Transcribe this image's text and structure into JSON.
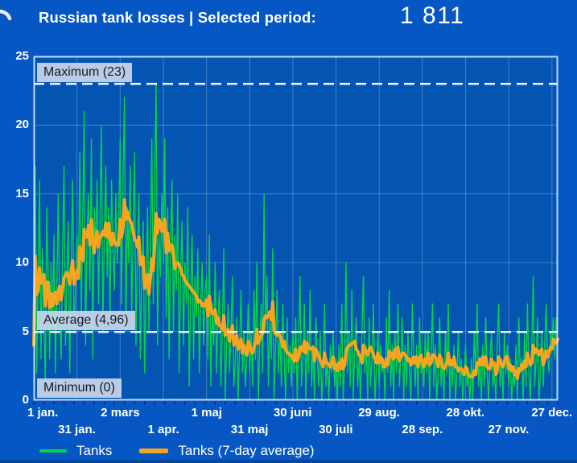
{
  "header": {
    "title": "Russian tank losses | Selected period:",
    "total": "1 811",
    "icon": "partial-undo-arrow"
  },
  "colors": {
    "background": "#0657C4",
    "plot_background": "#0455B2",
    "grid": "rgba(255,255,255,0.25)",
    "plot_border": "rgba(225,238,255,0.85)",
    "tanks_green": "#05D246",
    "average_orange": "#F7A41E",
    "reference_dash": "#F2F6FB",
    "chip_bg": "rgba(201,214,234,0.92)",
    "chip_text": "#171B22",
    "minor_tick": "rgba(6,36,90,0.75)",
    "bottom_edge": "#04479E"
  },
  "legend": {
    "items": [
      {
        "label": "Tanks",
        "color": "#05D246",
        "swatch_height": 4
      },
      {
        "label": "Tanks (7-day average)",
        "color": "#F7A41E",
        "swatch_height": 6
      }
    ]
  },
  "chart_data": {
    "type": "line",
    "title": "Russian tank losses",
    "selected_period_total": 1811,
    "ylim": [
      0,
      25
    ],
    "y_ticks": [
      0,
      5,
      10,
      15,
      20,
      25
    ],
    "x_axis": {
      "days_total": 365,
      "ticks": [
        {
          "label": "1 jan.",
          "day": 0,
          "row": 1
        },
        {
          "label": "31 jan.",
          "day": 30,
          "row": 2
        },
        {
          "label": "2 mars",
          "day": 60,
          "row": 1
        },
        {
          "label": "1 apr.",
          "day": 90,
          "row": 2
        },
        {
          "label": "1 maj",
          "day": 120,
          "row": 1
        },
        {
          "label": "31 maj",
          "day": 150,
          "row": 2
        },
        {
          "label": "30 juni",
          "day": 180,
          "row": 1
        },
        {
          "label": "30 juli",
          "day": 210,
          "row": 2
        },
        {
          "label": "29 aug.",
          "day": 240,
          "row": 1
        },
        {
          "label": "28 sep.",
          "day": 270,
          "row": 2
        },
        {
          "label": "28 okt.",
          "day": 300,
          "row": 1
        },
        {
          "label": "27 nov.",
          "day": 330,
          "row": 2
        },
        {
          "label": "27 dec.",
          "day": 360,
          "row": 1
        }
      ],
      "minor_tick_every_days": 7
    },
    "annotations": {
      "maximum": {
        "label": "Maximum (23)",
        "value": 23
      },
      "average": {
        "label": "Average (4,96)",
        "value": 4.96
      },
      "minimum": {
        "label": "Minimum (0)",
        "value": 0
      }
    },
    "grid": true,
    "legend_position": "bottom",
    "series": [
      {
        "name": "Tanks",
        "color": "#05D246",
        "values": [
          4,
          17,
          2,
          9,
          16,
          3,
          11,
          6,
          1,
          14,
          9,
          3,
          10,
          5,
          12,
          2,
          8,
          15,
          6,
          3,
          11,
          17,
          4,
          9,
          13,
          2,
          10,
          16,
          5,
          8,
          12,
          9,
          18,
          6,
          13,
          21,
          4,
          12,
          15,
          8,
          19,
          3,
          14,
          11,
          16,
          7,
          13,
          20,
          5,
          12,
          17,
          9,
          14,
          6,
          16,
          11,
          8,
          15,
          10,
          13,
          19,
          7,
          16,
          22,
          5,
          14,
          10,
          17,
          6,
          12,
          18,
          4,
          11,
          15,
          3,
          9,
          13,
          2,
          8,
          14,
          5,
          11,
          19,
          7,
          16,
          23,
          4,
          12,
          9,
          15,
          10,
          19,
          6,
          14,
          3,
          11,
          16,
          5,
          12,
          8,
          15,
          2,
          9,
          13,
          4,
          10,
          7,
          14,
          1,
          8,
          12,
          3,
          9,
          6,
          11,
          2,
          7,
          10,
          4,
          8,
          9,
          3,
          12,
          1,
          7,
          4,
          10,
          2,
          6,
          8,
          1,
          5,
          11,
          0,
          4,
          7,
          2,
          5,
          9,
          1,
          3,
          6,
          0,
          4,
          8,
          2,
          5,
          1,
          3,
          7,
          2,
          5,
          1,
          8,
          3,
          10,
          0,
          4,
          7,
          2,
          15,
          5,
          9,
          1,
          6,
          3,
          11,
          0,
          4,
          8,
          2,
          5,
          1,
          7,
          3,
          0,
          6,
          2,
          4,
          1,
          5,
          2,
          6,
          0,
          4,
          9,
          1,
          3,
          7,
          0,
          5,
          2,
          8,
          1,
          4,
          0,
          6,
          3,
          1,
          5,
          0,
          2,
          7,
          1,
          3,
          0,
          4,
          2,
          5,
          1,
          3,
          0,
          4,
          1,
          7,
          0,
          3,
          10,
          2,
          5,
          1,
          8,
          0,
          4,
          6,
          1,
          3,
          0,
          5,
          9,
          2,
          4,
          0,
          6,
          1,
          3,
          7,
          0,
          2,
          5,
          1,
          4,
          2,
          3,
          0,
          6,
          2,
          8,
          1,
          4,
          0,
          5,
          2,
          7,
          1,
          3,
          6,
          0,
          4,
          1,
          5,
          2,
          0,
          7,
          3,
          1,
          4,
          0,
          6,
          2,
          3,
          1,
          5,
          2,
          5,
          0,
          3,
          7,
          1,
          4,
          0,
          2,
          6,
          1,
          3,
          0,
          5,
          2,
          7,
          0,
          3,
          1,
          4,
          0,
          2,
          5,
          1,
          3,
          0,
          2,
          4,
          1,
          2,
          0,
          3,
          0,
          5,
          2,
          7,
          1,
          3,
          0,
          4,
          1,
          6,
          2,
          0,
          3,
          5,
          1,
          2,
          0,
          4,
          7,
          1,
          3,
          0,
          5,
          2,
          4,
          1,
          3,
          0,
          2,
          1,
          4,
          0,
          6,
          2,
          3,
          0,
          5,
          1,
          7,
          2,
          0,
          4,
          9,
          1,
          3,
          6,
          0,
          2,
          5,
          1,
          4,
          7,
          3,
          2,
          5,
          4,
          6,
          3,
          6,
          5
        ]
      },
      {
        "name": "Tanks (7-day average)",
        "color": "#F7A41E",
        "derived": "trailing 7-day moving average of Tanks"
      }
    ]
  }
}
